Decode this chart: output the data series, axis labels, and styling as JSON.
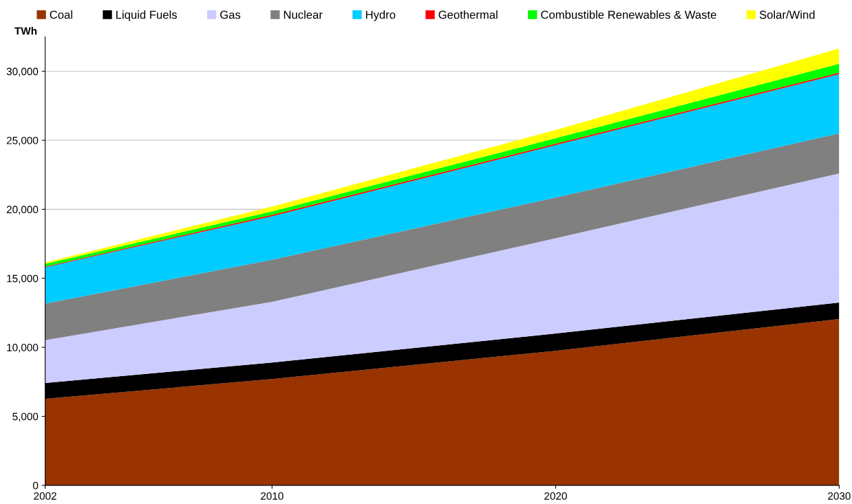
{
  "chart_data": {
    "type": "area",
    "stacked": true,
    "ylabel": "TWh",
    "x": [
      2002,
      2010,
      2020,
      2030
    ],
    "series": [
      {
        "name": "Coal",
        "color": "#993300",
        "values": [
          6270,
          7700,
          9750,
          12050
        ]
      },
      {
        "name": "Liquid Fuels",
        "color": "#000000",
        "values": [
          1150,
          1200,
          1250,
          1200
        ]
      },
      {
        "name": "Gas",
        "color": "#ccccff",
        "values": [
          3100,
          4400,
          6900,
          9350
        ]
      },
      {
        "name": "Nuclear",
        "color": "#808080",
        "values": [
          2650,
          3050,
          2950,
          2900
        ]
      },
      {
        "name": "Hydro",
        "color": "#00ccff",
        "values": [
          2630,
          3150,
          3800,
          4300
        ]
      },
      {
        "name": "Geothermal",
        "color": "#ff0000",
        "values": [
          50,
          100,
          100,
          100
        ]
      },
      {
        "name": "Combustible Renewables & Waste",
        "color": "#00ff00",
        "values": [
          200,
          250,
          400,
          650
        ]
      },
      {
        "name": "Solar/Wind",
        "color": "#ffff00",
        "values": [
          100,
          350,
          600,
          1100
        ]
      }
    ],
    "xlim": [
      2002,
      2030
    ],
    "xticks": [
      2002,
      2010,
      2020,
      2030
    ],
    "ylim": [
      0,
      32500
    ],
    "yticks": [
      0,
      {
        "value": 5000,
        "label": "5,000"
      },
      {
        "value": 10000,
        "label": "10,000"
      },
      {
        "value": 15000,
        "label": "15,000"
      },
      {
        "value": 20000,
        "label": "20,000"
      },
      {
        "value": 25000,
        "label": "25,000"
      },
      {
        "value": 30000,
        "label": "30,000"
      }
    ],
    "grid": "y",
    "legend": "top"
  }
}
